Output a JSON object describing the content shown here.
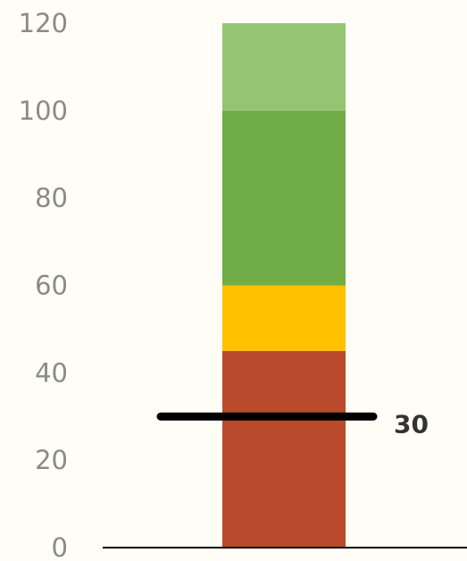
{
  "chart_data": {
    "type": "bar",
    "subtype": "bullet",
    "orientation": "vertical",
    "title": "",
    "xlabel": "",
    "ylabel": "",
    "ylim": [
      0,
      120
    ],
    "y_ticks": [
      0,
      20,
      40,
      60,
      80,
      100,
      120
    ],
    "y_tick_labels": [
      "0",
      "20",
      "40",
      "60",
      "80",
      "100",
      "120"
    ],
    "grid": false,
    "legend": "none",
    "bands": [
      {
        "from": 0,
        "to": 45,
        "color": "#b94a2c"
      },
      {
        "from": 45,
        "to": 60,
        "color": "#ffc000"
      },
      {
        "from": 60,
        "to": 100,
        "color": "#70ad47"
      },
      {
        "from": 100,
        "to": 120,
        "color": "#93c572"
      }
    ],
    "marker": {
      "value": 30,
      "label": "30",
      "color": "#000000"
    }
  }
}
